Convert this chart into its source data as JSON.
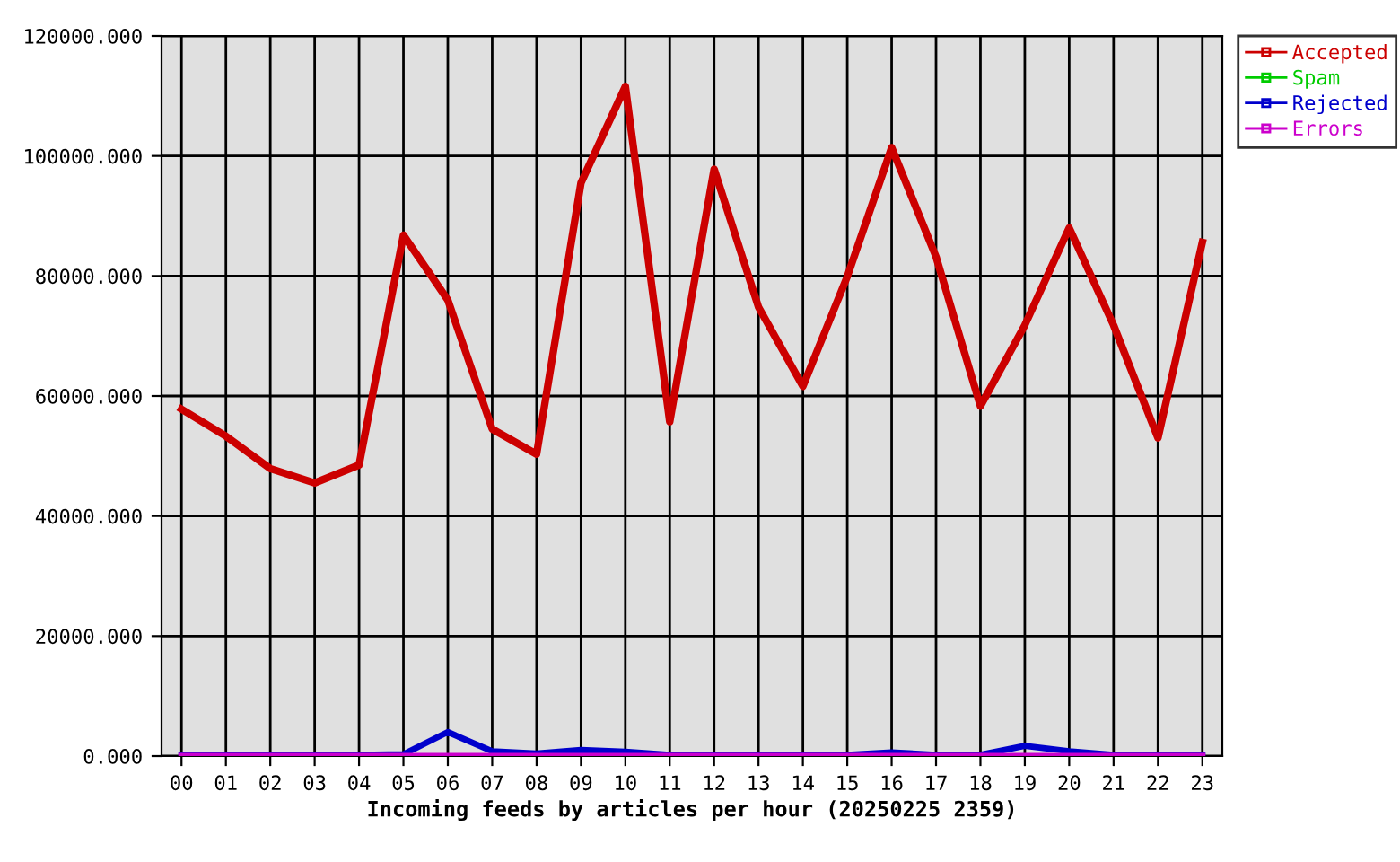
{
  "chart_data": {
    "type": "line",
    "xlabel": "Incoming feeds by articles per hour (20250225 2359)",
    "categories": [
      "00",
      "01",
      "02",
      "03",
      "04",
      "05",
      "06",
      "07",
      "08",
      "09",
      "10",
      "11",
      "12",
      "13",
      "14",
      "15",
      "16",
      "17",
      "18",
      "19",
      "20",
      "21",
      "22",
      "23"
    ],
    "series": [
      {
        "name": "Accepted",
        "color": "#cc0000",
        "values": [
          57800,
          53300,
          47900,
          45500,
          48500,
          86800,
          76000,
          54500,
          50300,
          95500,
          111600,
          55700,
          97800,
          74800,
          61600,
          79900,
          101400,
          83200,
          58300,
          71800,
          88000,
          71800,
          53000,
          85600
        ]
      },
      {
        "name": "Spam",
        "color": "#00cc00",
        "values": [
          null,
          null,
          null,
          null,
          null,
          null,
          null,
          null,
          null,
          null,
          null,
          null,
          null,
          null,
          null,
          null,
          null,
          null,
          null,
          null,
          null,
          null,
          null,
          null
        ]
      },
      {
        "name": "Rejected",
        "color": "#0000cc",
        "values": [
          200,
          200,
          200,
          200,
          200,
          300,
          4000,
          800,
          400,
          1000,
          700,
          200,
          200,
          200,
          200,
          200,
          600,
          200,
          200,
          1700,
          800,
          200,
          200,
          200
        ]
      },
      {
        "name": "Errors",
        "color": "#cc00cc",
        "values": [
          0,
          0,
          0,
          0,
          0,
          0,
          0,
          0,
          0,
          0,
          0,
          0,
          0,
          0,
          0,
          0,
          0,
          0,
          0,
          0,
          0,
          0,
          0,
          0
        ]
      }
    ],
    "ylim": [
      0,
      120000
    ],
    "yticks": [
      {
        "value": 0,
        "label": "0.000"
      },
      {
        "value": 20000,
        "label": "20000.000"
      },
      {
        "value": 40000,
        "label": "40000.000"
      },
      {
        "value": 60000,
        "label": "60000.000"
      },
      {
        "value": 80000,
        "label": "80000.000"
      },
      {
        "value": 100000,
        "label": "100000.000"
      },
      {
        "value": 120000,
        "label": "120000.000"
      }
    ],
    "grid": true,
    "legend": "top right",
    "line_style": "solid"
  }
}
